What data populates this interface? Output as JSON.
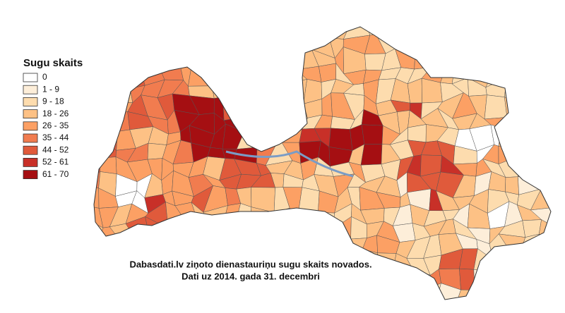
{
  "legend": {
    "title": "Sugu skaits",
    "items": [
      {
        "label": "0",
        "color": "#ffffff"
      },
      {
        "label": "1 - 9",
        "color": "#fdeed9"
      },
      {
        "label": "9 - 18",
        "color": "#fddcae"
      },
      {
        "label": "18 - 26",
        "color": "#fdc185"
      },
      {
        "label": "26 - 35",
        "color": "#fca064"
      },
      {
        "label": "35 - 44",
        "color": "#f17c4f"
      },
      {
        "label": "44 - 52",
        "color": "#e05a3b"
      },
      {
        "label": "52 - 61",
        "color": "#c83028"
      },
      {
        "label": "61 - 70",
        "color": "#a50f12"
      }
    ]
  },
  "caption": {
    "line1": "Dabasdati.lv ziņoto dienastauriņu sugu skaits novados.",
    "line2": "Dati uz 2014. gada 31. decembri"
  }
}
